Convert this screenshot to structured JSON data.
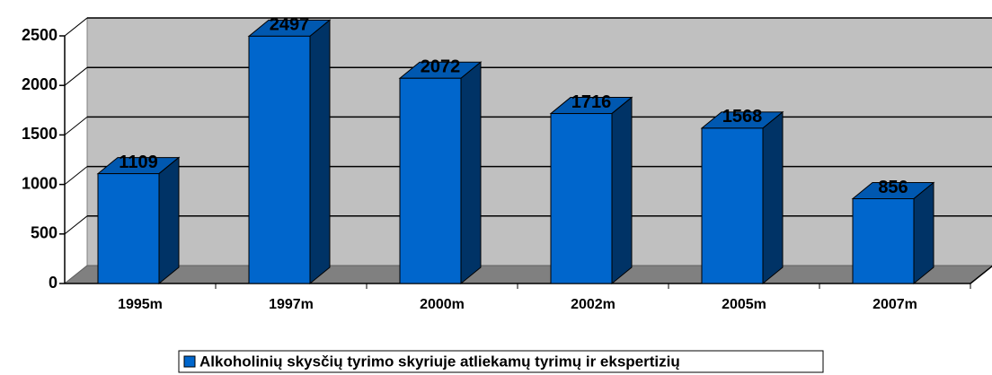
{
  "chart_data": {
    "type": "bar3d",
    "categories": [
      "1995m",
      "1997m",
      "2000m",
      "2002m",
      "2005m",
      "2007m"
    ],
    "series": [
      {
        "name": "Alkoholinių skysčių tyrimo skyriuje atliekamų tyrimų ir ekspertizių",
        "color": "#0066cc",
        "values": [
          1109,
          2497,
          2072,
          1716,
          1568,
          856
        ]
      }
    ],
    "ylim": [
      0,
      2500
    ],
    "yticks": [
      0,
      500,
      1000,
      1500,
      2000,
      2500
    ],
    "grid": true,
    "legend": "bottom"
  }
}
